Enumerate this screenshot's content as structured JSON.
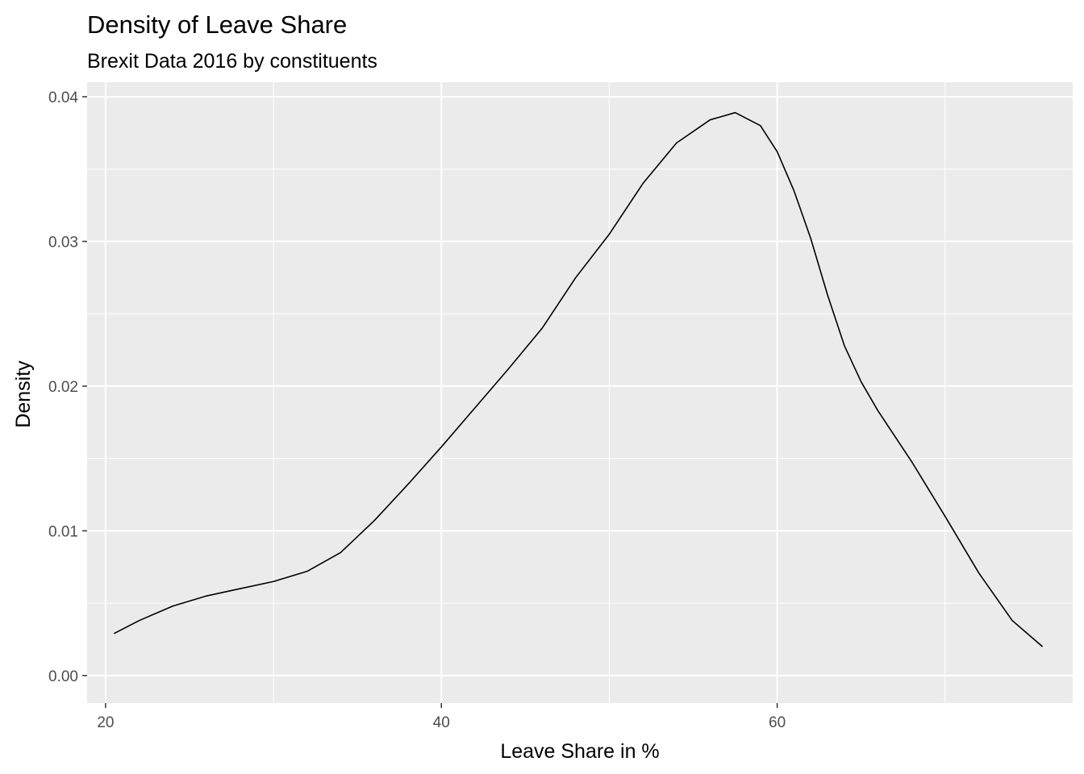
{
  "chart_data": {
    "type": "line",
    "title": "Density of Leave Share",
    "subtitle": "Brexit Data 2016 by constituents",
    "xlabel": "Leave Share in %",
    "ylabel": "Density",
    "xlim": [
      18.9,
      77.6
    ],
    "ylim": [
      -0.0019,
      0.041
    ],
    "x_ticks": [
      20,
      40,
      60
    ],
    "y_ticks": [
      0.0,
      0.01,
      0.02,
      0.03,
      0.04
    ],
    "x_tick_labels": [
      "20",
      "40",
      "60"
    ],
    "y_tick_labels": [
      "0.00",
      "0.01",
      "0.02",
      "0.03",
      "0.04"
    ],
    "grid": true,
    "background": "#ebebeb",
    "grid_color": "#ffffff",
    "line_color": "#000000",
    "series": [
      {
        "x": [
          20.5,
          22,
          24,
          26,
          28,
          30,
          32,
          34,
          36,
          38,
          40,
          42,
          44,
          46,
          48,
          50,
          52,
          54,
          56,
          57.5,
          59,
          60,
          61,
          62,
          63,
          64,
          65,
          66,
          68,
          70,
          72,
          74,
          75.8
        ],
        "y": [
          0.0029,
          0.0038,
          0.0048,
          0.0055,
          0.006,
          0.0065,
          0.0072,
          0.0085,
          0.0107,
          0.0132,
          0.0158,
          0.0185,
          0.0212,
          0.024,
          0.0275,
          0.0305,
          0.034,
          0.0368,
          0.0384,
          0.0389,
          0.038,
          0.0362,
          0.0335,
          0.0302,
          0.0263,
          0.0228,
          0.0203,
          0.0183,
          0.0148,
          0.011,
          0.0071,
          0.0038,
          0.002
        ]
      }
    ]
  }
}
